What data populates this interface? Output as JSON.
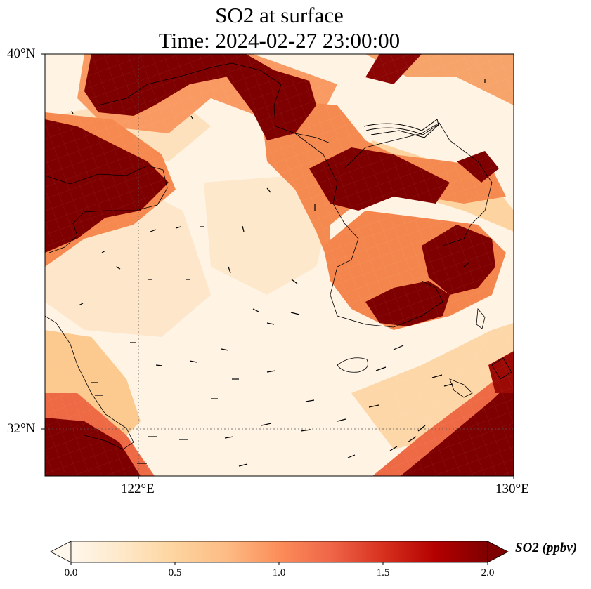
{
  "title": {
    "line1": "SO2 at surface",
    "line2": "Time: 2024-02-27 23:00:00"
  },
  "axes": {
    "lat_ticks": [
      "40°N",
      "32°N"
    ],
    "lon_ticks": [
      "122°E",
      "130°E"
    ]
  },
  "colorbar": {
    "label": "SO2 (ppbv)",
    "ticks": [
      "0.0",
      "0.5",
      "1.0",
      "1.5",
      "2.0"
    ],
    "range": [
      0.0,
      2.0
    ],
    "extend": "both",
    "colormap": "OrRd",
    "stops": [
      "#fff7ec",
      "#fee8c8",
      "#fdd49e",
      "#fdbb84",
      "#fc8d59",
      "#ef6548",
      "#d7301f",
      "#b30000",
      "#7f0000"
    ]
  },
  "map": {
    "lat_range": [
      31,
      40
    ],
    "lon_range": [
      120,
      130
    ],
    "gridlines": "dotted",
    "fields": [
      "SO2 concentration (shaded)",
      "wind vectors (arrows)"
    ]
  }
}
